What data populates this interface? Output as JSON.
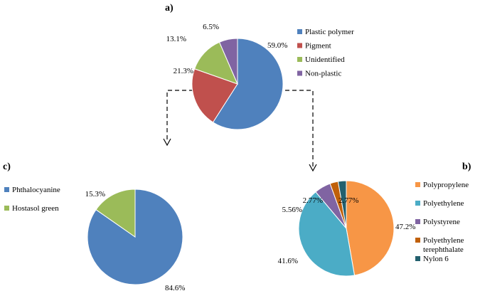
{
  "chart_data": [
    {
      "type": "pie",
      "panel": "a)",
      "categories": [
        "Plastic polymer",
        "Pigment",
        "Unidentified",
        "Non-plastic"
      ],
      "values": [
        59.0,
        21.3,
        13.1,
        6.5
      ],
      "labels": [
        "59.0%",
        "21.3%",
        "13.1%",
        "6.5%"
      ],
      "colors": [
        "#4f81bd",
        "#c0504d",
        "#9bbb59",
        "#8064a2"
      ],
      "legend_position": "right"
    },
    {
      "type": "pie",
      "panel": "b)",
      "categories": [
        "Polypropylene",
        "Polyethylene",
        "Polystyrene",
        "Polyethylene terephthalate",
        "Nylon 6"
      ],
      "legend_lines": [
        [
          "Polypropylene"
        ],
        [
          "Polyethylene"
        ],
        [
          "Polystyrene"
        ],
        [
          "Polyethylene",
          "terephthalate"
        ],
        [
          "Nylon 6"
        ]
      ],
      "values": [
        47.2,
        41.6,
        5.56,
        2.77,
        2.77
      ],
      "labels": [
        "47.2%",
        "41.6%",
        "5.56%",
        "2.77%",
        "2.77%"
      ],
      "colors": [
        "#f79646",
        "#4bacc6",
        "#8064a2",
        "#c0600a",
        "#23606e"
      ],
      "legend_position": "right"
    },
    {
      "type": "pie",
      "panel": "c)",
      "categories": [
        "Phthalocyanine",
        "Hostasol green"
      ],
      "values": [
        84.6,
        15.3
      ],
      "labels": [
        "84.6%",
        "15.3%"
      ],
      "colors": [
        "#4f81bd",
        "#9bbb59"
      ],
      "legend_position": "left"
    }
  ]
}
